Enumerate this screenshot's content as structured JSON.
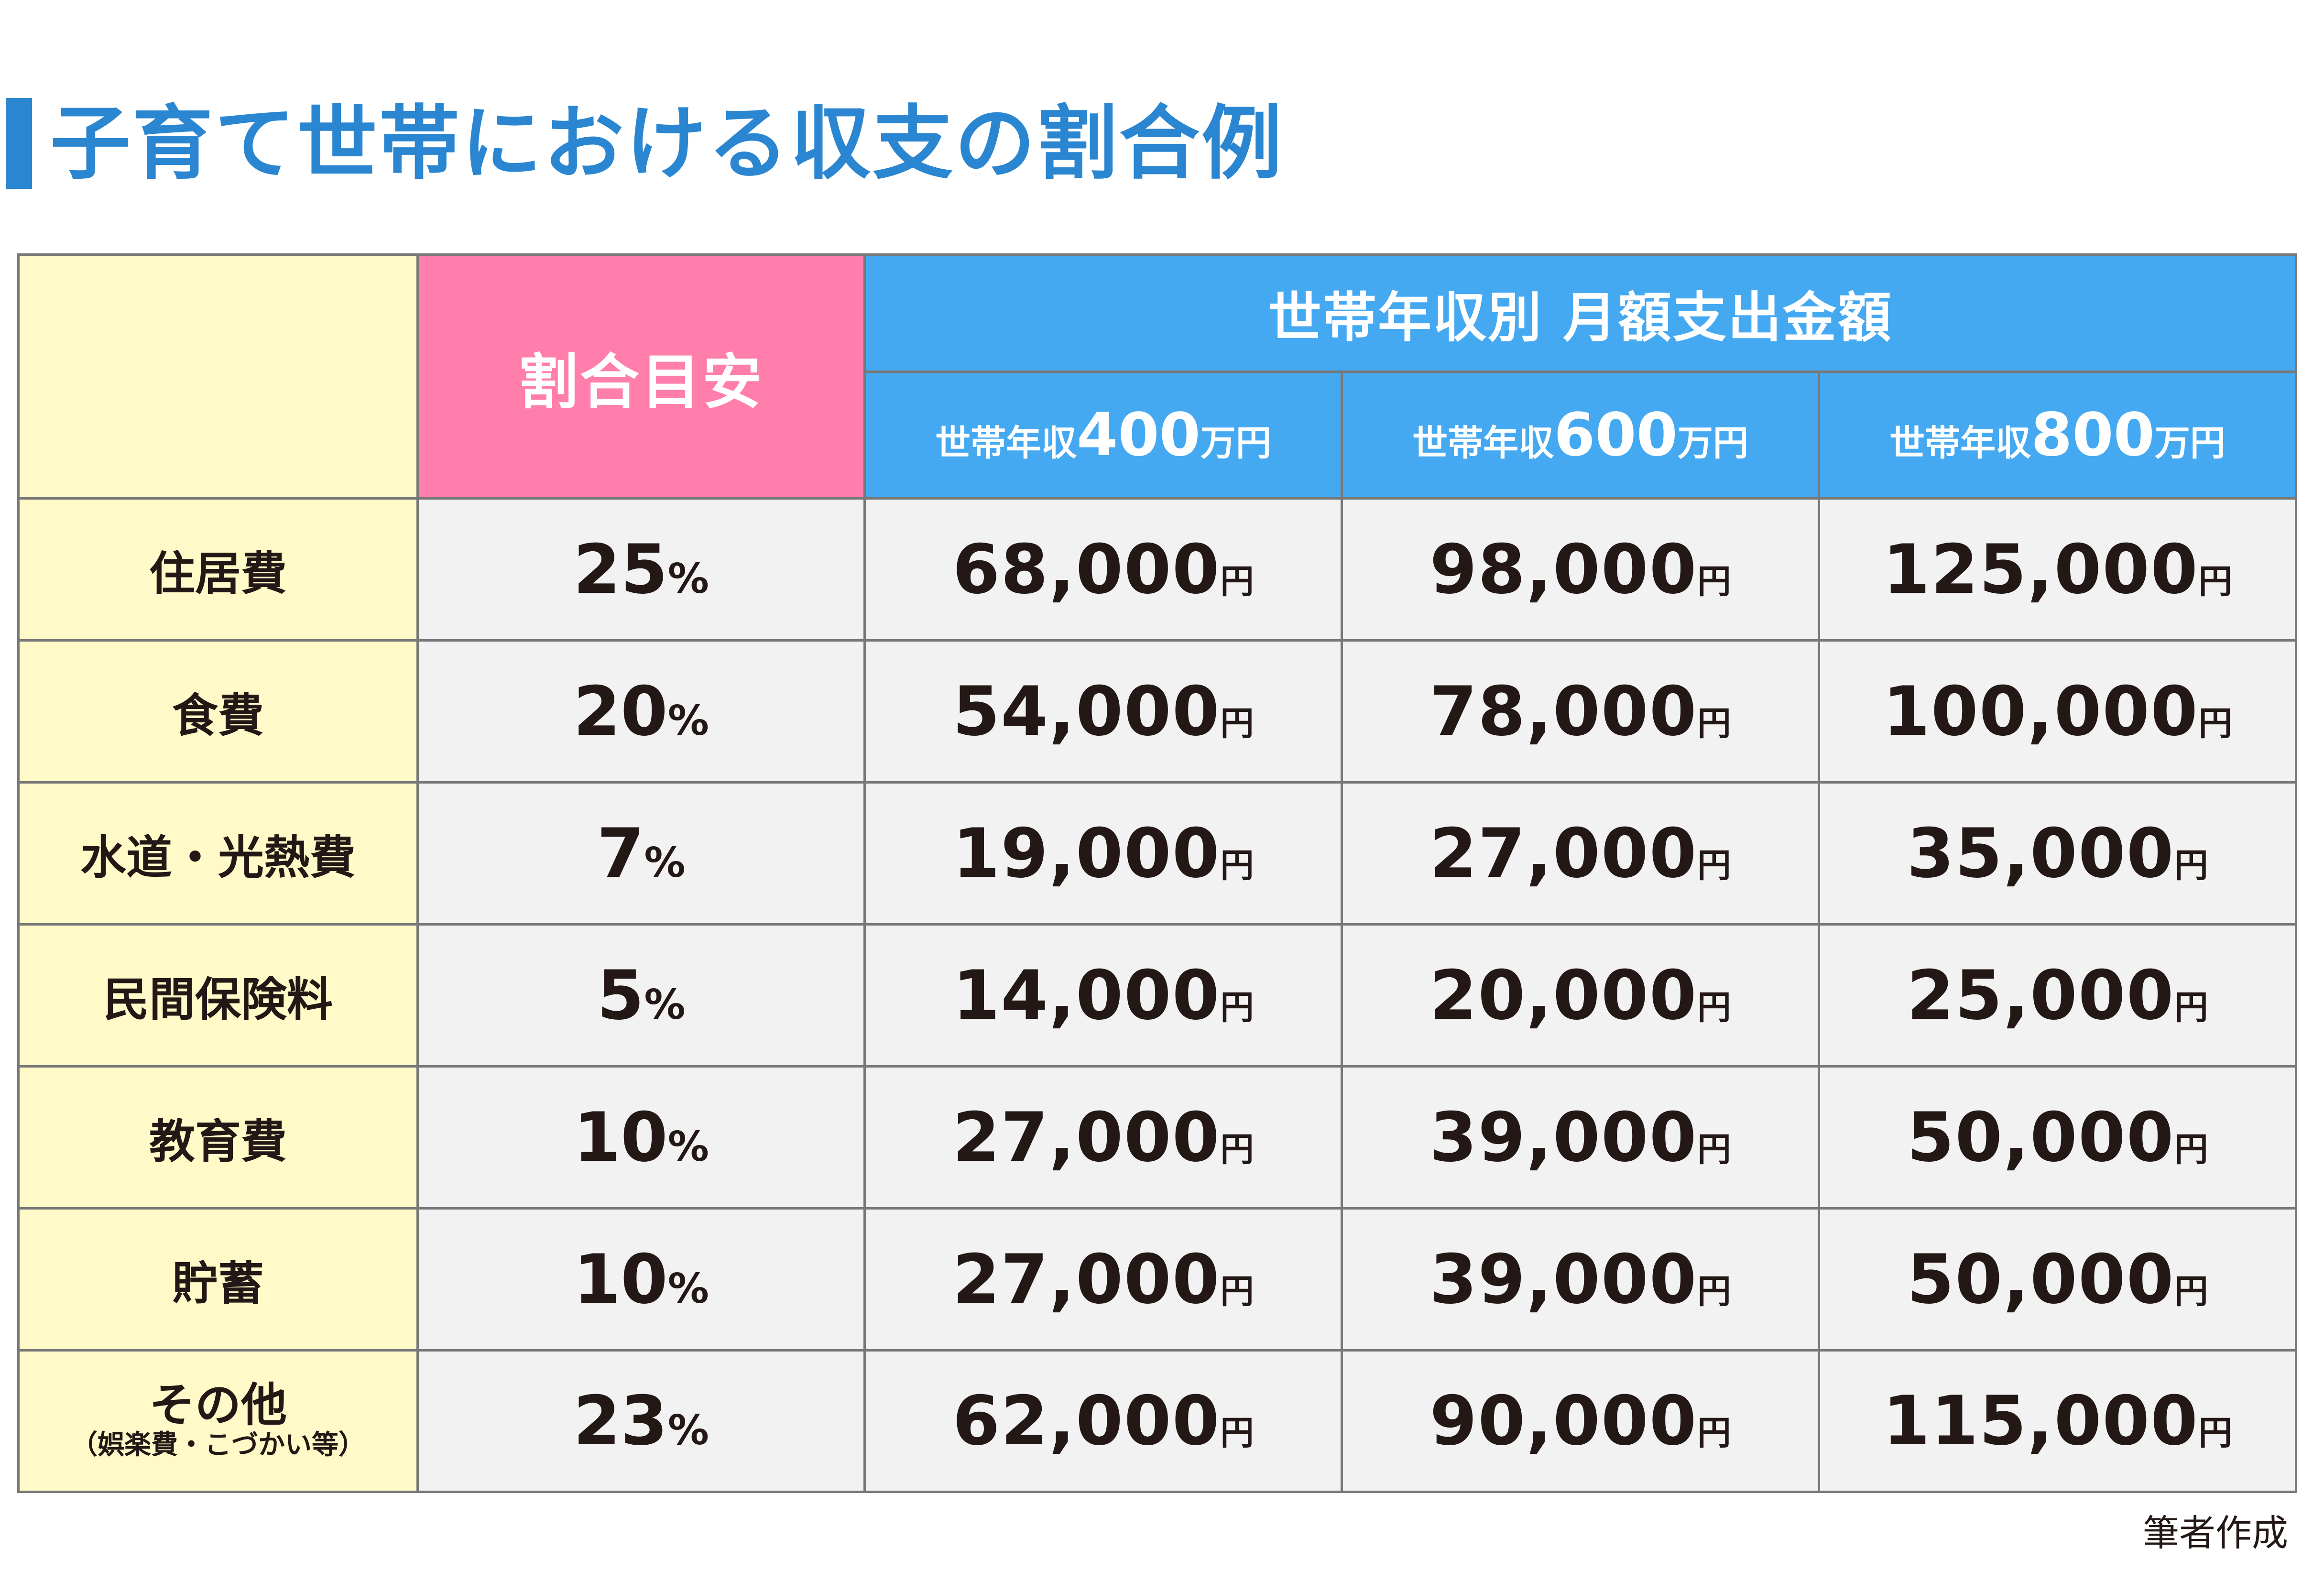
{
  "title": "子育て世帯における収支の割合例",
  "source": "筆者作成",
  "colors": {
    "title": "#2a86d0",
    "label_bg": "#fffac8",
    "ratio_header_bg": "#ff7eac",
    "amount_header_bg": "#45a9f2",
    "cell_bg": "#f2f2f2"
  },
  "chart_data": {
    "type": "table",
    "header": {
      "ratio_label": "割合目安",
      "group_label": "世帯年収別 月額支出金額",
      "incomes": [
        {
          "prefix": "世帯年収",
          "value": "400",
          "suffix": "万円"
        },
        {
          "prefix": "世帯年収",
          "value": "600",
          "suffix": "万円"
        },
        {
          "prefix": "世帯年収",
          "value": "800",
          "suffix": "万円"
        }
      ]
    },
    "percent_unit": "%",
    "currency_unit": "円",
    "rows": [
      {
        "label": "住居費",
        "sublabel": "",
        "ratio": "25",
        "amounts": [
          "68,000",
          "98,000",
          "125,000"
        ]
      },
      {
        "label": "食費",
        "sublabel": "",
        "ratio": "20",
        "amounts": [
          "54,000",
          "78,000",
          "100,000"
        ]
      },
      {
        "label": "水道・光熱費",
        "sublabel": "",
        "ratio": "7",
        "amounts": [
          "19,000",
          "27,000",
          "35,000"
        ]
      },
      {
        "label": "民間保険料",
        "sublabel": "",
        "ratio": "5",
        "amounts": [
          "14,000",
          "20,000",
          "25,000"
        ]
      },
      {
        "label": "教育費",
        "sublabel": "",
        "ratio": "10",
        "amounts": [
          "27,000",
          "39,000",
          "50,000"
        ]
      },
      {
        "label": "貯蓄",
        "sublabel": "",
        "ratio": "10",
        "amounts": [
          "27,000",
          "39,000",
          "50,000"
        ]
      },
      {
        "label": "その他",
        "sublabel": "（娯楽費・こづかい等）",
        "ratio": "23",
        "amounts": [
          "62,000",
          "90,000",
          "115,000"
        ]
      }
    ]
  }
}
